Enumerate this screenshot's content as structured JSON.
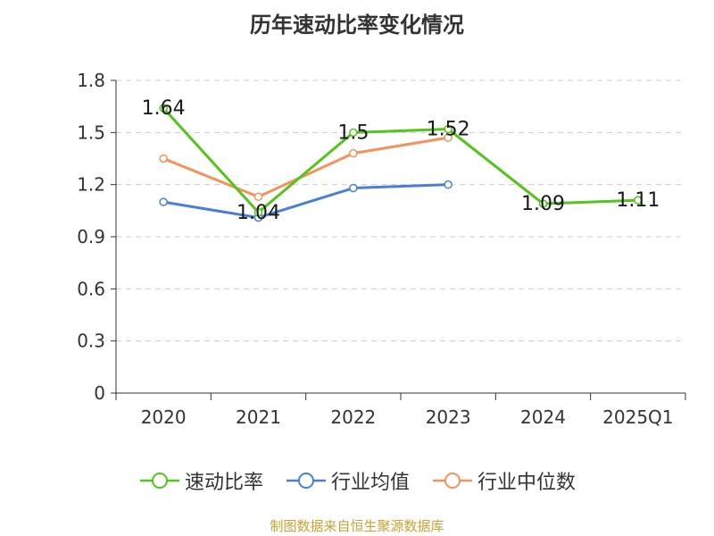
{
  "chart_data": {
    "type": "line",
    "title": "历年速动比率变化情况",
    "categories": [
      "2020",
      "2021",
      "2022",
      "2023",
      "2024",
      "2025Q1"
    ],
    "ylim": [
      0,
      1.8
    ],
    "yticks": [
      "0",
      "0.3",
      "0.6",
      "0.9",
      "1.2",
      "1.5",
      "1.8"
    ],
    "grid": true,
    "legend_position": "bottom",
    "series": [
      {
        "name": "速动比率",
        "color": "#52c41a",
        "values": [
          1.64,
          1.04,
          1.5,
          1.52,
          1.09,
          1.11
        ],
        "labels": [
          "1.64",
          "1.04",
          "1.5",
          "1.52",
          "1.09",
          "1.11"
        ]
      },
      {
        "name": "行业均值",
        "color": "#4a7fd8",
        "values": [
          1.1,
          1.01,
          1.18,
          1.2,
          null,
          null
        ]
      },
      {
        "name": "行业中位数",
        "color": "#f5915c",
        "values": [
          1.35,
          1.13,
          1.38,
          1.47,
          null,
          null
        ]
      }
    ]
  },
  "footer": {
    "source": "制图数据来自恒生聚源数据库"
  }
}
